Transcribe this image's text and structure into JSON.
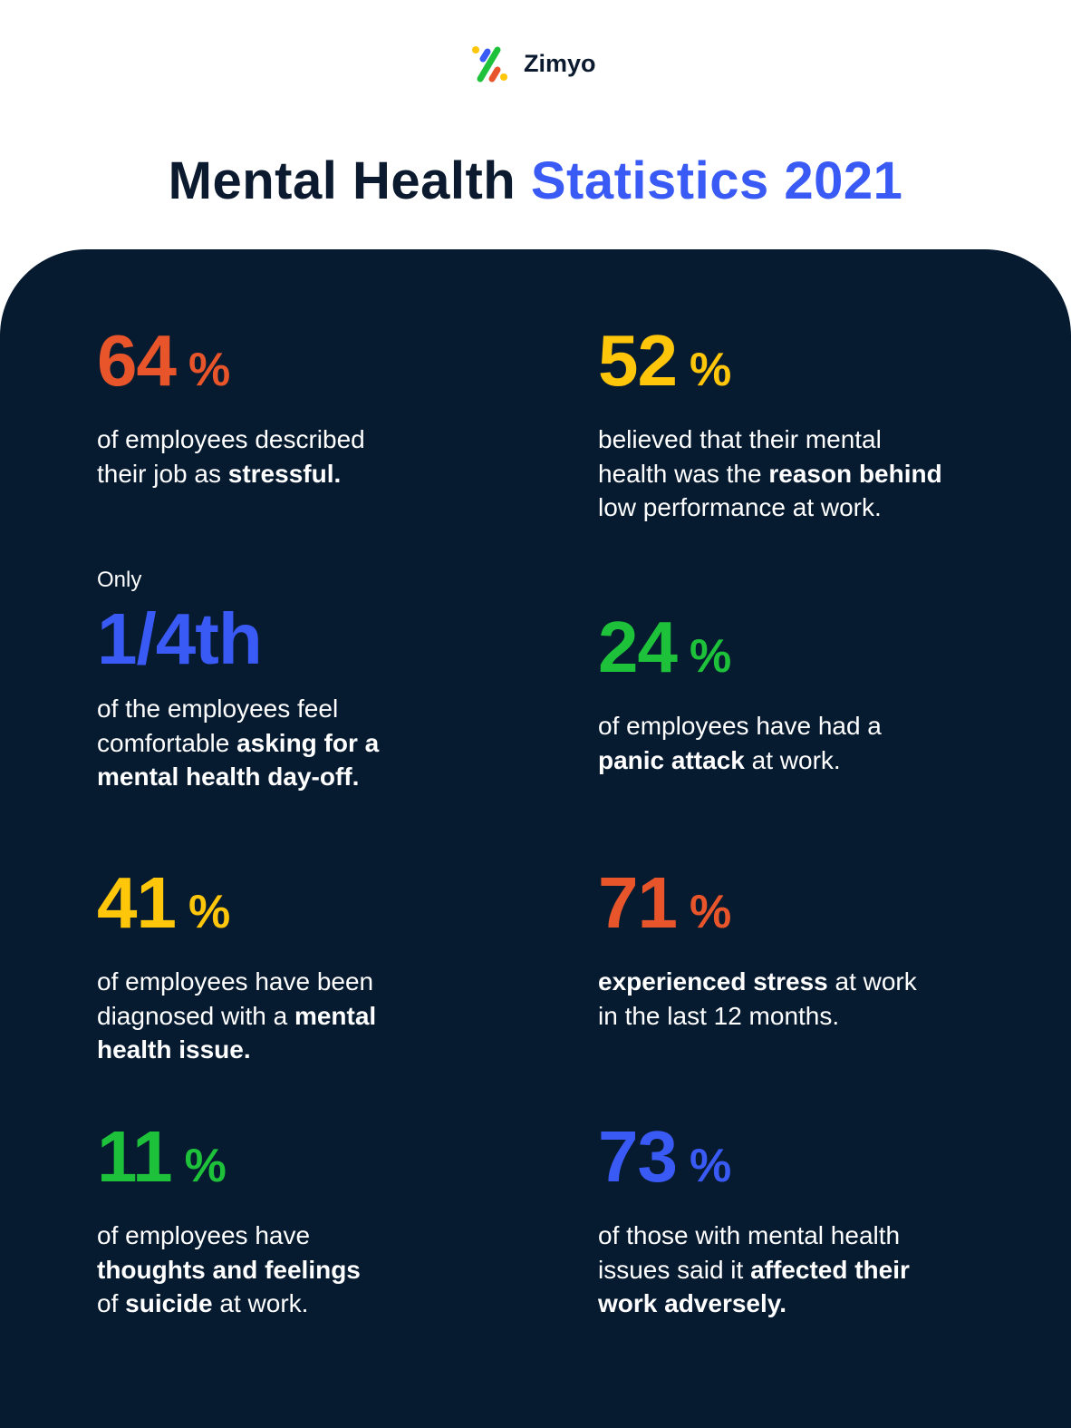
{
  "brand": {
    "name": "Zimyo"
  },
  "title": {
    "main": "Mental Health",
    "accent": "Statistics 2021"
  },
  "colors": {
    "orange": "#e8552a",
    "yellow": "#ffc60a",
    "blue": "#3a5af5",
    "green": "#1dc23a",
    "background": "#061a30",
    "text": "#ffffff"
  },
  "stats": [
    {
      "value": "64",
      "suffix": "%",
      "color": "#e8552a",
      "lines": [
        [
          {
            "text": "of employees described"
          }
        ],
        [
          {
            "text": "their job as "
          },
          {
            "text": "stressful.",
            "bold": true
          }
        ]
      ]
    },
    {
      "value": "52",
      "suffix": "%",
      "color": "#ffc60a",
      "lines": [
        [
          {
            "text": "believed that their mental"
          }
        ],
        [
          {
            "text": "health was the "
          },
          {
            "text": "reason behind",
            "bold": true
          }
        ],
        [
          {
            "text": "low performance at work."
          }
        ]
      ]
    },
    {
      "prefix": "Only",
      "value": "1/4th",
      "suffix": "",
      "color": "#3a5af5",
      "lines": [
        [
          {
            "text": "of the employees feel"
          }
        ],
        [
          {
            "text": "comfortable "
          },
          {
            "text": "asking for a",
            "bold": true
          }
        ],
        [
          {
            "text": "mental health day-off.",
            "bold": true
          }
        ]
      ]
    },
    {
      "value": "24",
      "suffix": "%",
      "color": "#1dc23a",
      "lines": [
        [
          {
            "text": "of employees have had a"
          }
        ],
        [
          {
            "text": "panic attack",
            "bold": true
          },
          {
            "text": " at work."
          }
        ]
      ]
    },
    {
      "value": "41",
      "suffix": "%",
      "color": "#ffc60a",
      "lines": [
        [
          {
            "text": "of employees have been"
          }
        ],
        [
          {
            "text": "diagnosed with a "
          },
          {
            "text": "mental",
            "bold": true
          }
        ],
        [
          {
            "text": "health issue.",
            "bold": true
          }
        ]
      ]
    },
    {
      "value": "71",
      "suffix": "%",
      "color": "#e8552a",
      "lines": [
        [
          {
            "text": "experienced stress",
            "bold": true
          },
          {
            "text": " at work"
          }
        ],
        [
          {
            "text": "in the last 12 months."
          }
        ]
      ]
    },
    {
      "value": "11",
      "suffix": "%",
      "color": "#1dc23a",
      "lines": [
        [
          {
            "text": "of employees have"
          }
        ],
        [
          {
            "text": "thoughts and feelings",
            "bold": true
          }
        ],
        [
          {
            "text": "of "
          },
          {
            "text": "suicide",
            "bold": true
          },
          {
            "text": " at work."
          }
        ]
      ]
    },
    {
      "value": "73",
      "suffix": "%",
      "color": "#3a5af5",
      "lines": [
        [
          {
            "text": "of those with mental health"
          }
        ],
        [
          {
            "text": "issues said it "
          },
          {
            "text": "affected their",
            "bold": true
          }
        ],
        [
          {
            "text": "work adversely.",
            "bold": true
          }
        ]
      ]
    }
  ]
}
